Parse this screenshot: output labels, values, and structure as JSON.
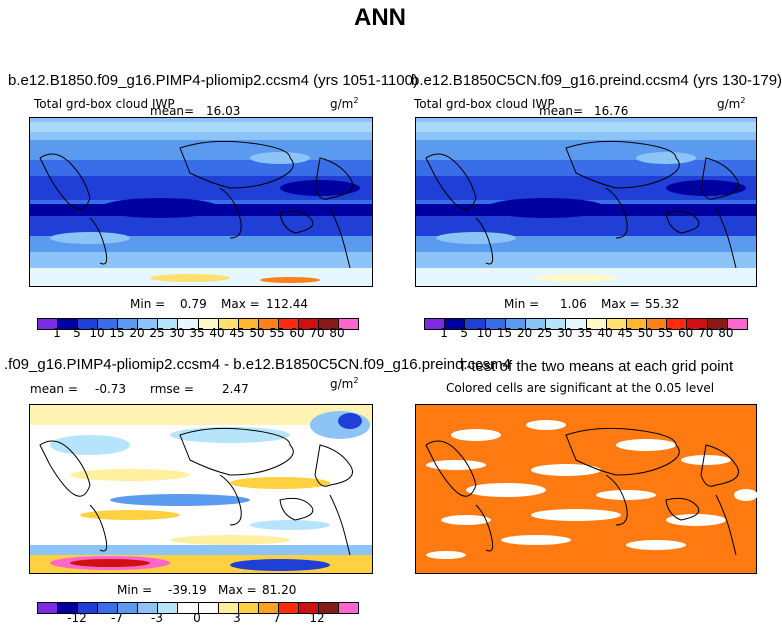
{
  "figure": {
    "title": "ANN"
  },
  "chart_data": [
    {
      "type": "heatmap",
      "title": "b.e12.B1850.f09_g16.PIMP4-pliomip2.ccsm4 (yrs 1051-1100)",
      "variable": "Total grd-box cloud IWP",
      "units_base": "g/m",
      "units_exp": "2",
      "mean_label": "mean=",
      "mean": "16.03",
      "min_label": "Min =",
      "min": "0.79",
      "max_label": "Max =",
      "max": "112.44",
      "colorbar_levels": [
        "1",
        "5",
        "10",
        "15",
        "20",
        "25",
        "30",
        "35",
        "40",
        "45",
        "50",
        "55",
        "60",
        "70",
        "80"
      ],
      "colors": [
        "#7b2be2",
        "#0000a0",
        "#1f3fd6",
        "#3a6ee8",
        "#5a9bf0",
        "#8cc4f8",
        "#b6e4fa",
        "#e6f7ff",
        "#fff8c8",
        "#ffe070",
        "#ffb830",
        "#ff7f1a",
        "#ff2a10",
        "#d01010",
        "#8a1a1a",
        "#ff66cc"
      ]
    },
    {
      "type": "heatmap",
      "title": "b.e12.B1850C5CN.f09_g16.preind.ccsm4 (yrs 130-179)",
      "variable": "Total grd-box cloud IWP",
      "units_base": "g/m",
      "units_exp": "2",
      "mean_label": "mean=",
      "mean": "16.76",
      "min_label": "Min =",
      "min": "1.06",
      "max_label": "Max =",
      "max": "55.32",
      "colorbar_levels": [
        "1",
        "5",
        "10",
        "15",
        "20",
        "25",
        "30",
        "35",
        "40",
        "45",
        "50",
        "55",
        "60",
        "70",
        "80"
      ]
    },
    {
      "type": "heatmap",
      "title": ".f09_g16.PIMP4-pliomip2.ccsm4 - b.e12.B1850C5CN.f09_g16.preind.ccsm4",
      "units_base": "g/m",
      "units_exp": "2",
      "mean_label": "mean =",
      "mean": "-0.73",
      "rmse_label": "rmse =",
      "rmse": "2.47",
      "min_label": "Min =",
      "min": "-39.19",
      "max_label": "Max =",
      "max": "81.20",
      "colorbar_levels": [
        "-12",
        "-7",
        "-3",
        "0",
        "3",
        "7",
        "12"
      ],
      "colors": [
        "#7b2be2",
        "#0000a0",
        "#1f3fd6",
        "#3a6ee8",
        "#5a9bf0",
        "#8cc4f8",
        "#b6e4fa",
        "#ffffff",
        "#ffffff",
        "#fff0a0",
        "#ffd040",
        "#ffa020",
        "#ff2a10",
        "#d01010",
        "#8a1a1a",
        "#ff66cc"
      ]
    },
    {
      "type": "heatmap",
      "title": "T-test of the two means at each grid point",
      "subtitle": "Colored cells are significant at the 0.05 level",
      "color": "#ff7a10"
    }
  ]
}
